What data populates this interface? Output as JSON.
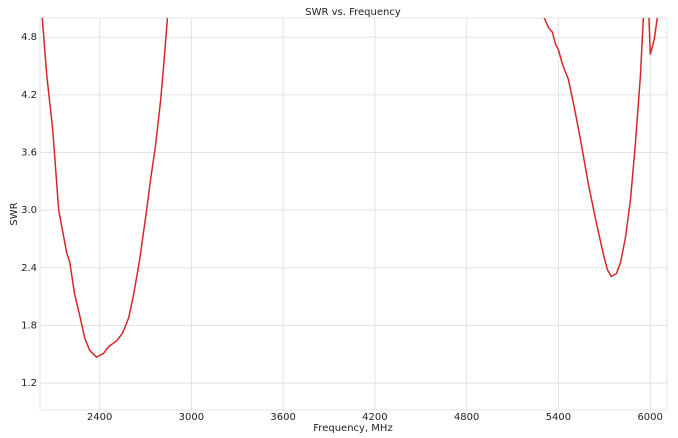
{
  "chart_data": {
    "type": "line",
    "title": "SWR vs. Frequency",
    "x_label": "Frequency, MHz",
    "y_label": "SWR",
    "xlim": [
      2010,
      6110
    ],
    "ylim": [
      0.92,
      5.0
    ],
    "xticks": [
      2400,
      3000,
      3600,
      4200,
      4800,
      5400,
      6000
    ],
    "yticks": [
      {
        "value": 1.2,
        "label": "1.2"
      },
      {
        "value": 1.8,
        "label": "1.8"
      },
      {
        "value": 2.4,
        "label": "2.4"
      },
      {
        "value": 3.0,
        "label": "3.0"
      },
      {
        "value": 3.6,
        "label": "3.6"
      },
      {
        "value": 4.2,
        "label": "4.2"
      },
      {
        "value": 4.8,
        "label": "4.8"
      }
    ],
    "grid": true,
    "series": [
      {
        "color": "#d62728",
        "x": [
          2020,
          2054,
          2093,
          2132,
          2184,
          2204,
          2237,
          2269,
          2302,
          2335,
          2380,
          2426,
          2459,
          2511,
          2550,
          2590,
          2622,
          2661,
          2707,
          2733,
          2766,
          2799,
          2825,
          2844,
          2860,
          4000,
          5280,
          5335,
          5361,
          5380,
          5400,
          5426,
          5465,
          5504,
          5544,
          5596,
          5648,
          5694,
          5720,
          5746,
          5779,
          5805,
          5838,
          5871,
          5903,
          5937,
          5956,
          5975,
          5990,
          6001,
          6027,
          6047,
          6060
        ],
        "values": [
          5.1,
          4.41,
          3.84,
          3.0,
          2.56,
          2.46,
          2.12,
          1.91,
          1.67,
          1.54,
          1.47,
          1.51,
          1.58,
          1.64,
          1.72,
          1.88,
          2.12,
          2.48,
          3.0,
          3.32,
          3.68,
          4.15,
          4.62,
          5.01,
          5.2,
          null,
          5.1,
          4.9,
          4.85,
          4.73,
          4.67,
          4.52,
          4.36,
          4.07,
          3.74,
          3.27,
          2.87,
          2.54,
          2.38,
          2.31,
          2.34,
          2.45,
          2.71,
          3.11,
          3.68,
          4.41,
          5.01,
          5.2,
          5.1,
          4.62,
          4.78,
          5.01,
          5.2
        ]
      }
    ]
  }
}
